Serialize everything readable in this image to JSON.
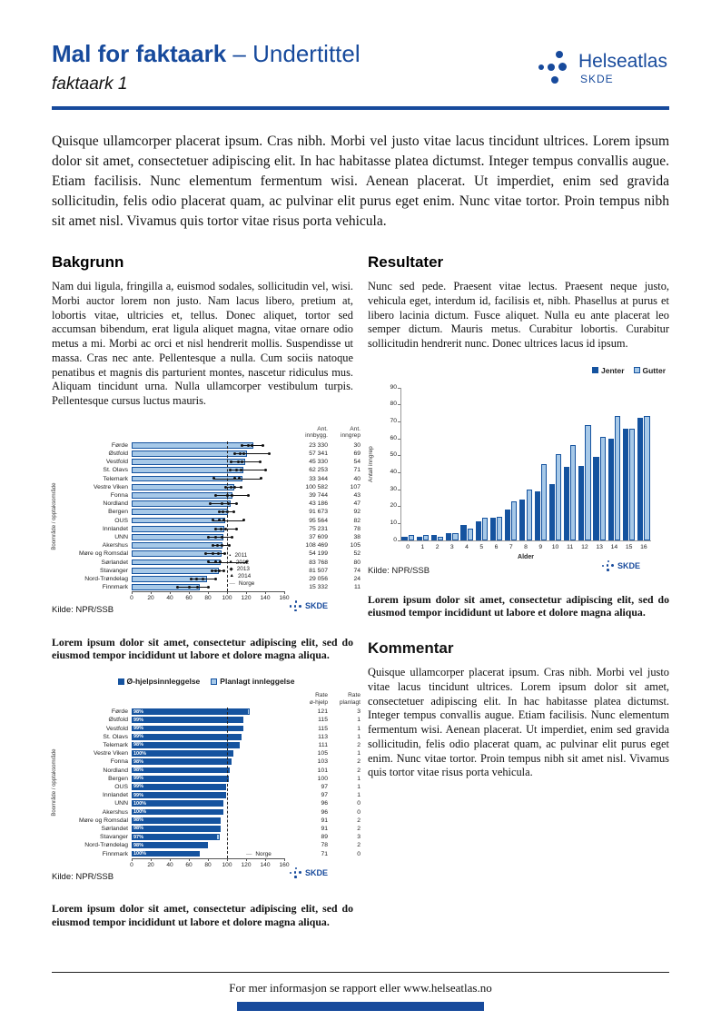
{
  "header": {
    "title": "Mal for faktaark",
    "separator": "–",
    "subtitle": "Undertittel",
    "subheading": "faktaark 1",
    "logo": {
      "name": "Helseatlas",
      "org": "SKDE"
    }
  },
  "intro": "Quisque ullamcorper placerat ipsum. Cras nibh. Morbi vel justo vitae lacus tincidunt ultrices. Lorem ipsum dolor sit amet, consectetuer adipiscing elit. In hac habitasse platea dictumst. Integer tempus convallis augue. Etiam facilisis. Nunc elementum fermentum wisi. Aenean placerat. Ut imperdiet, enim sed gravida sollicitudin, felis odio placerat quam, ac pulvinar elit purus eget enim. Nunc vitae tortor. Proin tempus nibh sit amet nisl. Vivamus quis tortor vitae risus porta vehicula.",
  "sections": {
    "bakgrunn": {
      "heading": "Bakgrunn",
      "body": "Nam dui ligula, fringilla a, euismod sodales, sollicitudin vel, wisi. Morbi auctor lorem non justo. Nam lacus libero, pretium at, lobortis vitae, ultricies et, tellus. Donec aliquet, tortor sed accumsan bibendum, erat ligula aliquet magna, vitae ornare odio metus a mi. Morbi ac orci et nisl hendrerit mollis. Suspendisse ut massa. Cras nec ante. Pellentesque a nulla. Cum sociis natoque penatibus et magnis dis parturient montes, nascetur ridiculus mus. Aliquam tincidunt urna. Nulla ullamcorper vestibulum turpis. Pellentesque cursus luctus mauris."
    },
    "resultater": {
      "heading": "Resultater",
      "body": "Nunc sed pede. Praesent vitae lectus. Praesent neque justo, vehicula eget, interdum id, facilisis et, nibh. Phasellus at purus et libero lacinia dictum. Fusce aliquet. Nulla eu ante placerat leo semper dictum. Mauris metus. Curabitur lobortis. Curabitur sollicitudin hendrerit nunc. Donec ultrices lacus id ipsum."
    },
    "kommentar": {
      "heading": "Kommentar",
      "body": "Quisque ullamcorper placerat ipsum. Cras nibh. Morbi vel justo vitae lacus tincidunt ultrices. Lorem ipsum dolor sit amet, consectetuer adipiscing elit. In hac habitasse platea dictumst. Integer tempus convallis augue. Etiam facilisis. Nunc elementum fermentum wisi. Aenean placerat. Ut imperdiet, enim sed gravida sollicitudin, felis odio placerat quam, ac pulvinar elit purus eget enim. Nunc vitae tortor. Proin tempus nibh sit amet nisl. Vivamus quis tortor vitae risus porta vehicula."
    }
  },
  "captions": {
    "chart1": "Lorem ipsum dolor sit amet, consectetur adipiscing elit, sed do eiusmod tempor incididunt ut labore et dolore magna aliqua.",
    "chart2": "Lorem ipsum dolor sit amet, consectetur adipiscing elit, sed do eiusmod tempor incididunt ut labore et dolore magna aliqua.",
    "chart3": "Lorem ipsum dolor sit amet, consectetur adipiscing elit, sed do eiusmod tempor incididunt ut labore et dolore magna aliqua."
  },
  "footer": {
    "text": "For mer informasjon se rapport eller www.helseatlas.no"
  },
  "colors": {
    "brand_blue": "#174a9c",
    "bar_dark": "#15539f",
    "bar_light": "#a7c9e8",
    "marker_black": "#111111"
  },
  "chart_data": [
    {
      "id": "chart1",
      "type": "bar",
      "orientation": "horizontal",
      "categories": [
        "Førde",
        "Østfold",
        "Vestfold",
        "St. Olavs",
        "Telemark",
        "Vestre Viken",
        "Fonna",
        "Nordland",
        "Bergen",
        "OUS",
        "Innlandet",
        "UNN",
        "Akershus",
        "Møre og Romsdal",
        "Sørlandet",
        "Stavanger",
        "Nord-Trøndelag",
        "Finnmark"
      ],
      "values": [
        128,
        121,
        119,
        117,
        116,
        108,
        106,
        104,
        101,
        98,
        97,
        96,
        95,
        94,
        93,
        91,
        79,
        71
      ],
      "markers": {
        "years": [
          "2011",
          "2012",
          "2013",
          "2014"
        ],
        "values": [
          [
            116,
            122,
            126,
            138
          ],
          [
            108,
            114,
            118,
            144
          ],
          [
            104,
            112,
            116,
            135
          ],
          [
            103,
            110,
            115,
            140
          ],
          [
            86,
            108,
            113,
            136
          ],
          [
            99,
            104,
            108,
            115
          ],
          [
            88,
            100,
            105,
            122
          ],
          [
            82,
            95,
            101,
            110
          ],
          [
            92,
            96,
            100,
            107
          ],
          [
            85,
            92,
            97,
            118
          ],
          [
            88,
            94,
            99,
            110
          ],
          [
            80,
            88,
            95,
            105
          ],
          [
            85,
            90,
            95,
            102
          ],
          [
            78,
            85,
            91,
            98
          ],
          [
            80,
            88,
            93,
            120
          ],
          [
            84,
            88,
            92,
            97
          ],
          [
            62,
            68,
            75,
            88
          ],
          [
            48,
            60,
            69,
            80
          ]
        ]
      },
      "reference_line": {
        "label": "Norge",
        "value": 100
      },
      "xlim": [
        0,
        160
      ],
      "xticks": [
        0,
        20,
        40,
        60,
        80,
        100,
        120,
        140,
        160
      ],
      "ylabel": "Boområde / opptaksområde",
      "columns": [
        {
          "header": "Ant.\ninnbygg.",
          "values": [
            "23 330",
            "57 341",
            "45 330",
            "62 253",
            "33 344",
            "100 582",
            "39 744",
            "43 186",
            "91 673",
            "95 564",
            "75 231",
            "37 609",
            "108 469",
            "54 199",
            "83 768",
            "81 507",
            "29 056",
            "15 332"
          ]
        },
        {
          "header": "Ant.\ninngrep",
          "values": [
            "30",
            "69",
            "54",
            "71",
            "40",
            "107",
            "43",
            "47",
            "92",
            "82",
            "78",
            "38",
            "105",
            "52",
            "80",
            "74",
            "24",
            "11"
          ]
        }
      ],
      "source": "Kilde: NPR/SSB"
    },
    {
      "id": "chart2",
      "type": "bar",
      "orientation": "horizontal",
      "stacked": true,
      "legend": [
        "Ø-hjelpsinnleggelse",
        "Planlagt innleggelse"
      ],
      "categories": [
        "Førde",
        "Østfold",
        "Vestfold",
        "St. Olavs",
        "Telemark",
        "Vestre Viken",
        "Fonna",
        "Nordland",
        "Bergen",
        "OUS",
        "Innlandet",
        "UNN",
        "Akershus",
        "Møre og Romsdal",
        "Sørlandet",
        "Stavanger",
        "Nord-Trøndelag",
        "Finnmark"
      ],
      "series": [
        {
          "name": "Ø-hjelpsinnleggelse",
          "values": [
            121,
            115,
            115,
            113,
            111,
            105,
            103,
            101,
            100,
            97,
            97,
            96,
            96,
            91,
            91,
            89,
            78,
            71
          ]
        },
        {
          "name": "Planlagt innleggelse",
          "values": [
            3,
            1,
            1,
            1,
            2,
            1,
            2,
            2,
            1,
            1,
            1,
            0,
            0,
            2,
            2,
            3,
            2,
            0
          ]
        }
      ],
      "bar_labels": [
        "98%",
        "99%",
        "99%",
        "99%",
        "98%",
        "100%",
        "98%",
        "98%",
        "99%",
        "99%",
        "99%",
        "100%",
        "100%",
        "98%",
        "98%",
        "97%",
        "98%",
        "100%"
      ],
      "reference_line": {
        "label": "Norge",
        "value": 100
      },
      "xlim": [
        0,
        160
      ],
      "xticks": [
        0,
        20,
        40,
        60,
        80,
        100,
        120,
        140,
        160
      ],
      "ylabel": "Boområde / opptaksområde",
      "columns": [
        {
          "header": "Rate\nø-hjelp",
          "values": [
            "121",
            "115",
            "115",
            "113",
            "111",
            "105",
            "103",
            "101",
            "100",
            "97",
            "97",
            "96",
            "96",
            "91",
            "91",
            "89",
            "78",
            "71"
          ]
        },
        {
          "header": "Rate\nplanlagt",
          "values": [
            "3",
            "1",
            "1",
            "1",
            "2",
            "1",
            "2",
            "2",
            "1",
            "1",
            "1",
            "0",
            "0",
            "2",
            "2",
            "3",
            "2",
            "0"
          ]
        }
      ],
      "source": "Kilde: NPR/SSB"
    },
    {
      "id": "chart3",
      "type": "bar",
      "orientation": "vertical",
      "grouped": true,
      "legend": [
        "Jenter",
        "Gutter"
      ],
      "categories": [
        "0",
        "1",
        "2",
        "3",
        "4",
        "5",
        "6",
        "7",
        "8",
        "9",
        "10",
        "11",
        "12",
        "13",
        "14",
        "15",
        "16"
      ],
      "series": [
        {
          "name": "Jenter",
          "values": [
            2,
            2,
            3,
            4,
            9,
            11,
            13,
            18,
            24,
            29,
            33,
            43,
            44,
            49,
            60,
            66,
            72
          ]
        },
        {
          "name": "Gutter",
          "values": [
            3,
            3,
            2,
            4,
            7,
            13,
            14,
            23,
            30,
            45,
            51,
            56,
            68,
            61,
            73,
            66,
            73
          ]
        }
      ],
      "ylim": [
        0,
        90
      ],
      "yticks": [
        0,
        10,
        20,
        30,
        40,
        50,
        60,
        70,
        80,
        90
      ],
      "xlabel": "Alder",
      "ylabel": "Antall inngrep",
      "source": "Kilde: NPR/SSB"
    }
  ]
}
